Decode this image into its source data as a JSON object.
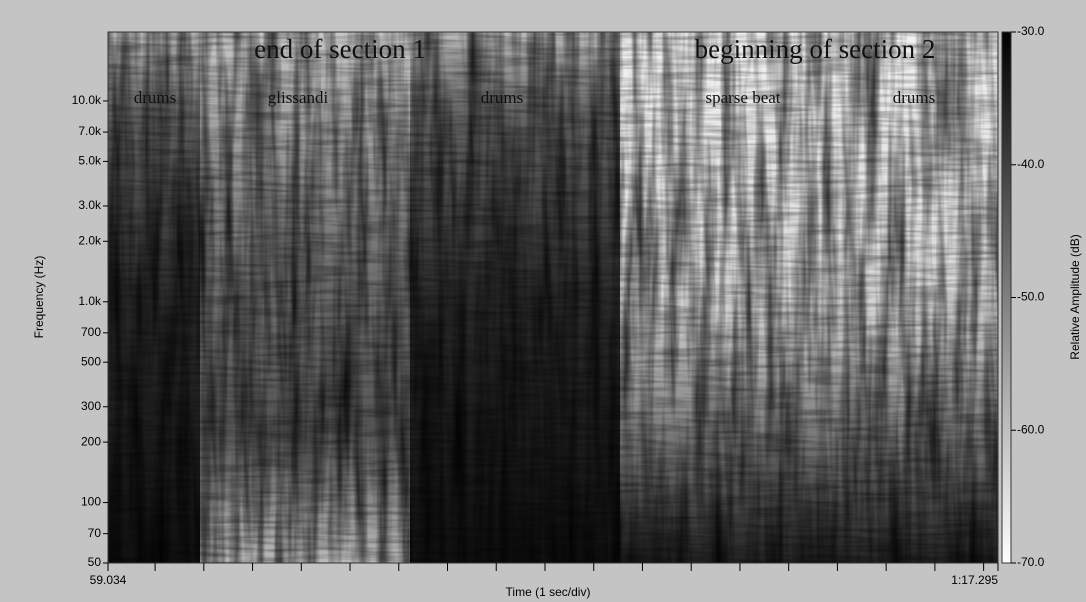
{
  "chart_data": {
    "type": "spectrogram",
    "xlabel": "Time (1 sec/div)",
    "ylabel": "Frequency (Hz)",
    "xlim": [
      59.034,
      77.295
    ],
    "xticks": [
      {
        "value": 59.034,
        "label": "59.034"
      },
      {
        "value": 77.295,
        "label": "1:17.295"
      }
    ],
    "minor_xticks": [
      60,
      61,
      62,
      63,
      64,
      65,
      66,
      67,
      68,
      69,
      70,
      71,
      72,
      73,
      74,
      75,
      76,
      77
    ],
    "ylim": [
      50,
      22050
    ],
    "yscale": "log",
    "yticks": [
      50,
      70,
      100,
      200,
      300,
      500,
      700,
      {
        "value": 1000,
        "label": "1.0k"
      },
      {
        "value": 2000,
        "label": "2.0k"
      },
      {
        "value": 3000,
        "label": "3.0k"
      },
      {
        "value": 5000,
        "label": "5.0k"
      },
      {
        "value": 7000,
        "label": "7.0k"
      },
      {
        "value": 10000,
        "label": "10.0k"
      }
    ],
    "colorbar": {
      "label": "Relative Amplitude (dB)",
      "clim": [
        -70,
        -30
      ],
      "ticks": [
        {
          "value": -30,
          "label": "-30.0"
        },
        {
          "value": -40,
          "label": "-40.0"
        },
        {
          "value": -50,
          "label": "-50.0"
        },
        {
          "value": -60,
          "label": "-60.0"
        },
        {
          "value": -70,
          "label": "-70.0"
        }
      ],
      "colors": [
        "#ffffff",
        "#000000"
      ]
    },
    "annotations": [
      "end of section 1",
      "beginning of section 2",
      "drums",
      "glissandi",
      "drums",
      "sparse beat",
      "drums"
    ]
  }
}
